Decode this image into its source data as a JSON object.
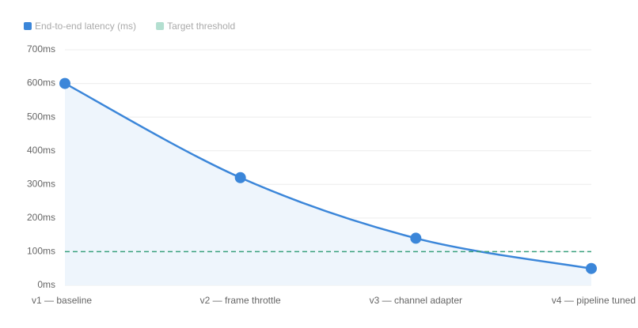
{
  "chart_data": {
    "type": "line",
    "categories": [
      "v1 — baseline",
      "v2 — frame throttle",
      "v3 — channel adapter",
      "v4 — pipeline tuned"
    ],
    "series": [
      {
        "name": "End-to-end latency (ms)",
        "color": "#3b86d9",
        "values": [
          600,
          320,
          140,
          50
        ]
      },
      {
        "name": "Target threshold",
        "color": "#3aa17e",
        "values": [
          100,
          100,
          100,
          100
        ]
      }
    ],
    "ylim": [
      0,
      700
    ],
    "yticks": [
      {
        "value": 0,
        "label": "0ms"
      },
      {
        "value": 100,
        "label": "100ms"
      },
      {
        "value": 200,
        "label": "200ms"
      },
      {
        "value": 300,
        "label": "300ms"
      },
      {
        "value": 400,
        "label": "400ms"
      },
      {
        "value": 500,
        "label": "500ms"
      },
      {
        "value": 600,
        "label": "600ms"
      },
      {
        "value": 700,
        "label": "700ms"
      }
    ],
    "grid": true
  }
}
